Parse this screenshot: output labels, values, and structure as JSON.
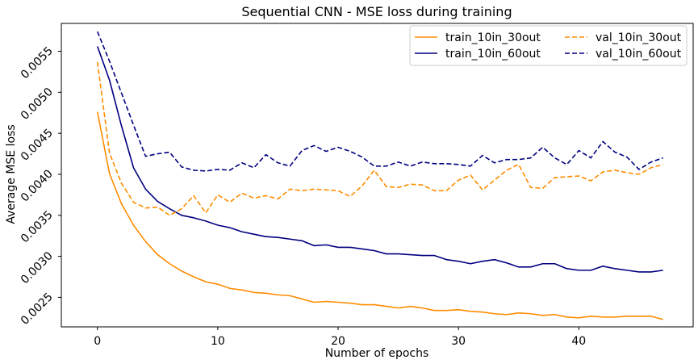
{
  "chart_data": {
    "type": "line",
    "title": "Sequential CNN - MSE loss during training",
    "xlabel": "Number of epochs",
    "ylabel": "Average MSE loss",
    "xlim": [
      -3,
      49.5
    ],
    "ylim": [
      0.00214,
      0.00584
    ],
    "xticks": [
      "0",
      "10",
      "20",
      "30",
      "40"
    ],
    "yticks": [
      "0.0025",
      "0.0030",
      "0.0035",
      "0.0040",
      "0.0045",
      "0.0050",
      "0.0055"
    ],
    "grid": false,
    "legend_position": "top-right",
    "legend_columns": 2,
    "x": [
      0,
      1,
      2,
      3,
      4,
      5,
      6,
      7,
      8,
      9,
      10,
      11,
      12,
      13,
      14,
      15,
      16,
      17,
      18,
      19,
      20,
      21,
      22,
      23,
      24,
      25,
      26,
      27,
      28,
      29,
      30,
      31,
      32,
      33,
      34,
      35,
      36,
      37,
      38,
      39,
      40,
      41,
      42,
      43,
      44,
      45,
      46,
      47
    ],
    "series": [
      {
        "name": "train_10in_30out",
        "color": "#ff8c00",
        "dash": "solid",
        "values": [
          0.00476,
          0.00401,
          0.00364,
          0.00338,
          0.00318,
          0.00302,
          0.00291,
          0.00282,
          0.00275,
          0.00269,
          0.00266,
          0.00261,
          0.00259,
          0.00256,
          0.00255,
          0.00253,
          0.00252,
          0.00248,
          0.00244,
          0.00245,
          0.00244,
          0.00243,
          0.00241,
          0.00241,
          0.00239,
          0.00237,
          0.00239,
          0.00237,
          0.00234,
          0.00234,
          0.00235,
          0.00233,
          0.00232,
          0.0023,
          0.00229,
          0.00231,
          0.0023,
          0.00228,
          0.00229,
          0.00226,
          0.00225,
          0.00227,
          0.00226,
          0.00226,
          0.00227,
          0.00227,
          0.00227,
          0.00223
        ]
      },
      {
        "name": "train_10in_60out",
        "color": "#000080",
        "dash": "solid",
        "values": [
          0.00556,
          0.00515,
          0.00459,
          0.00408,
          0.00382,
          0.00367,
          0.00358,
          0.0035,
          0.00347,
          0.00343,
          0.00338,
          0.00335,
          0.0033,
          0.00327,
          0.00324,
          0.00323,
          0.00321,
          0.00319,
          0.00313,
          0.00314,
          0.00311,
          0.00311,
          0.00309,
          0.00307,
          0.00303,
          0.00303,
          0.00302,
          0.00301,
          0.00301,
          0.00296,
          0.00294,
          0.00291,
          0.00294,
          0.00296,
          0.00292,
          0.00287,
          0.00287,
          0.00291,
          0.00291,
          0.00285,
          0.00283,
          0.00283,
          0.00288,
          0.00285,
          0.00283,
          0.00281,
          0.00281,
          0.00283
        ]
      },
      {
        "name": "val_10in_30out",
        "color": "#ff8c00",
        "dash": "dashed",
        "values": [
          0.00537,
          0.00426,
          0.00389,
          0.00366,
          0.00359,
          0.0036,
          0.0035,
          0.00358,
          0.00374,
          0.00353,
          0.00375,
          0.00366,
          0.00377,
          0.00371,
          0.00374,
          0.0037,
          0.00382,
          0.0038,
          0.00382,
          0.00381,
          0.0038,
          0.00373,
          0.00386,
          0.00405,
          0.00385,
          0.00384,
          0.00388,
          0.00387,
          0.0038,
          0.0038,
          0.00393,
          0.00399,
          0.00381,
          0.00393,
          0.00405,
          0.00412,
          0.00384,
          0.00383,
          0.00396,
          0.00397,
          0.00398,
          0.00392,
          0.00403,
          0.00405,
          0.00402,
          0.004,
          0.00408,
          0.00412
        ]
      },
      {
        "name": "val_10in_60out",
        "color": "#000080",
        "dash": "dashed",
        "values": [
          0.00574,
          0.00538,
          0.00499,
          0.0046,
          0.00422,
          0.00425,
          0.00427,
          0.00409,
          0.00405,
          0.00404,
          0.00406,
          0.00405,
          0.00414,
          0.00408,
          0.00424,
          0.00414,
          0.0041,
          0.00429,
          0.00435,
          0.00428,
          0.00433,
          0.00428,
          0.00421,
          0.0041,
          0.0041,
          0.00415,
          0.0041,
          0.00415,
          0.00413,
          0.00413,
          0.00412,
          0.0041,
          0.00423,
          0.00414,
          0.00418,
          0.00418,
          0.0042,
          0.00433,
          0.0042,
          0.00412,
          0.00429,
          0.0042,
          0.0044,
          0.00427,
          0.00421,
          0.00406,
          0.00415,
          0.0042
        ]
      }
    ]
  }
}
